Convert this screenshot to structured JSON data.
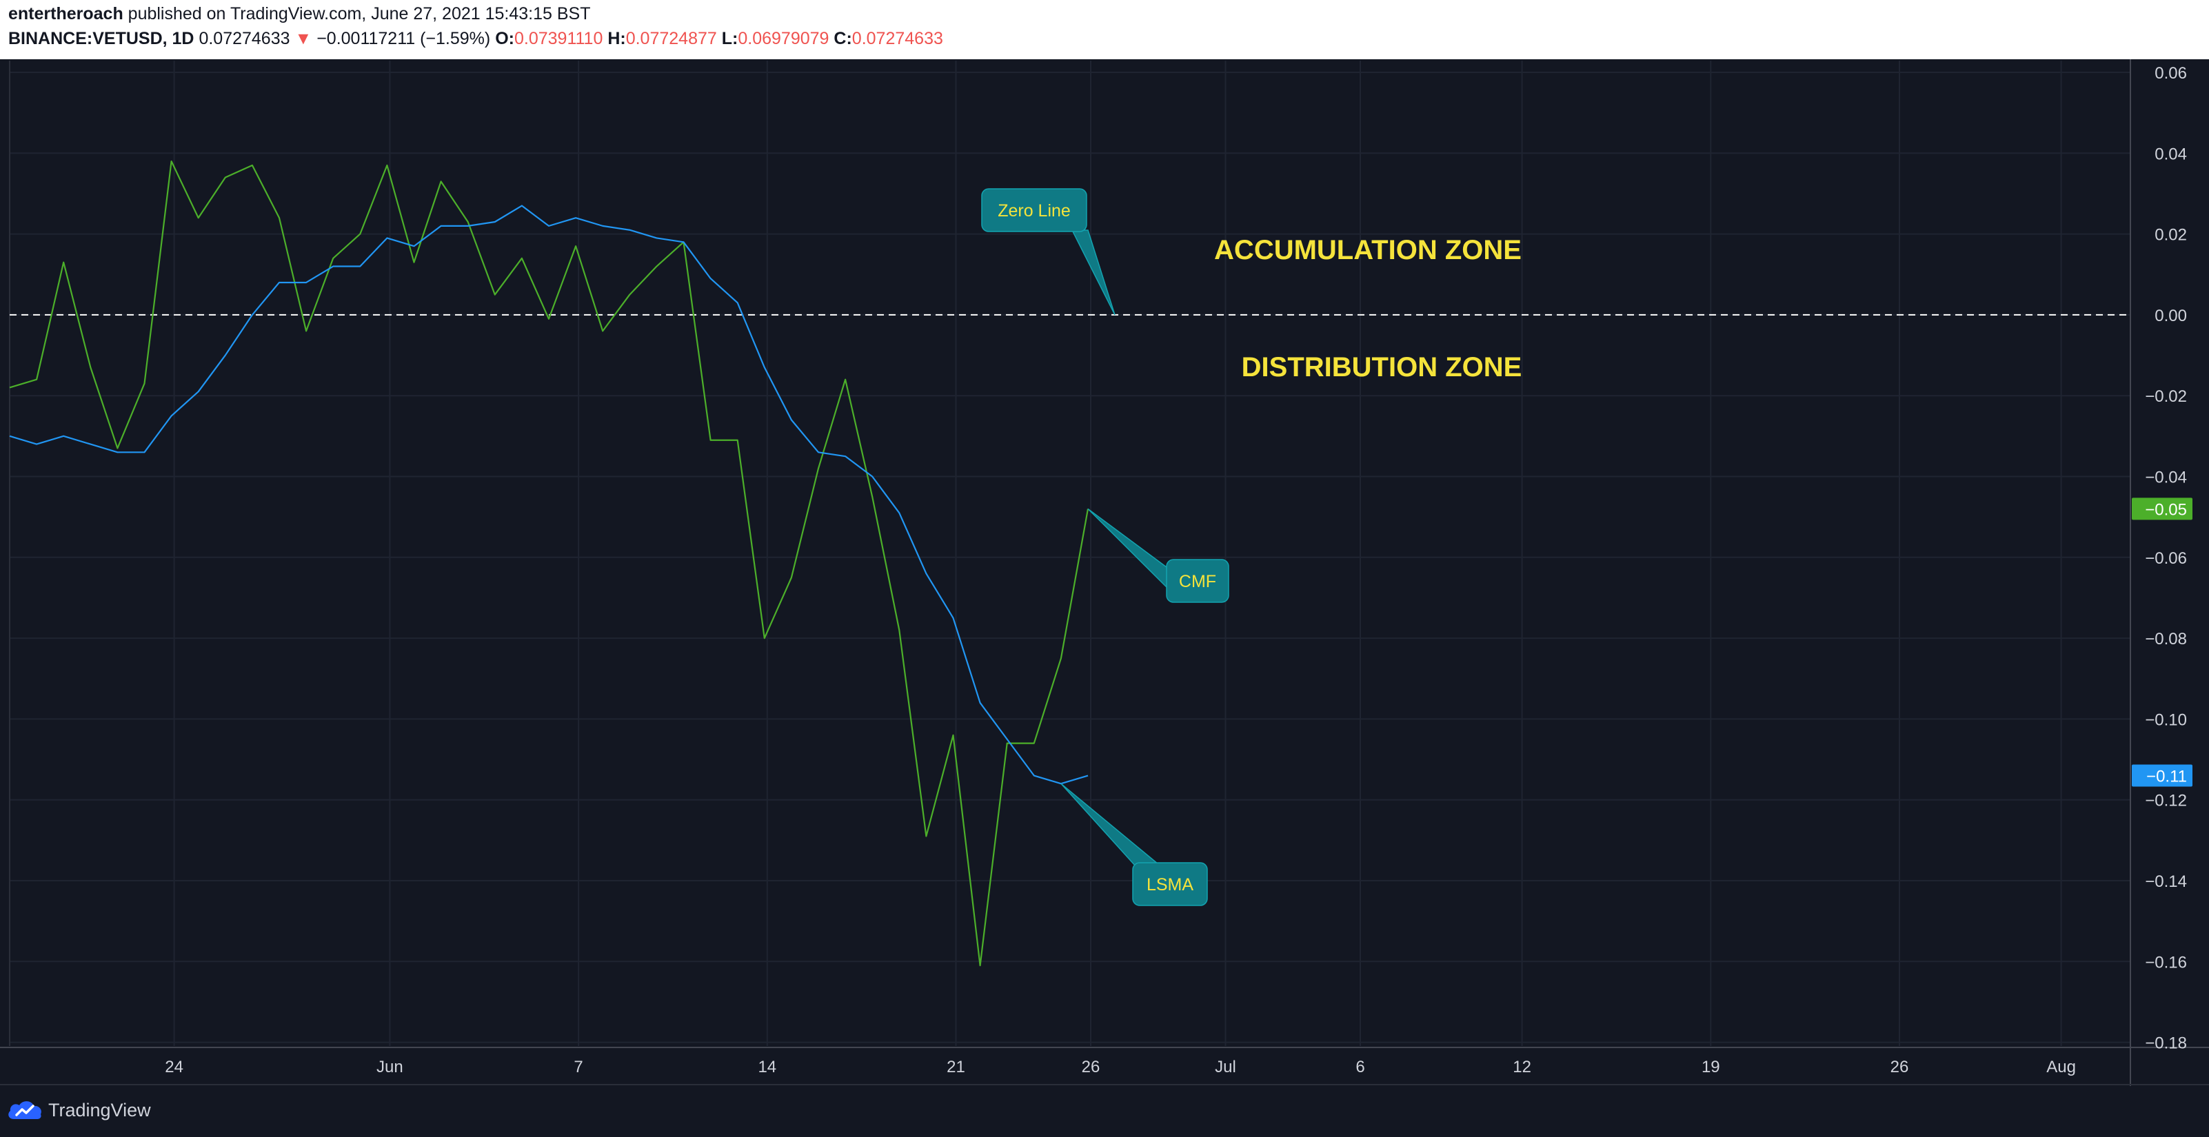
{
  "header": {
    "author": "entertheroach",
    "published_text": " published on TradingView.com, June 27, 2021 15:43:15 BST",
    "symbol": "BINANCE:VETUSD, 1D",
    "last_price": "0.07274633",
    "change_arrow": "▼",
    "change": "−0.00117211 (−1.59%)",
    "o_label": "O:",
    "o_value": "0.07391110",
    "h_label": "H:",
    "h_value": "0.07724877",
    "l_label": "L:",
    "l_value": "0.06979079",
    "c_label": "C:",
    "c_value": "0.07274633"
  },
  "footer": {
    "brand": "TradingView"
  },
  "colors": {
    "background": "#131722",
    "grid": "#1f2431",
    "cmf": "#4caf2a",
    "lsma": "#2196f3",
    "zone_text": "#f5e33b",
    "callout_fill": "#0f7a85",
    "callout_text": "#f5e33b"
  },
  "chart_data": {
    "type": "line",
    "title": "",
    "x_ticks": [
      "24",
      "Jun",
      "7",
      "14",
      "21",
      "26",
      "Jul",
      "6",
      "12",
      "19",
      "26",
      "Aug"
    ],
    "y_ticks": [
      "0.06",
      "0.04",
      "0.02",
      "0.00",
      "−0.02",
      "−0.04",
      "−0.06",
      "−0.08",
      "−0.10",
      "−0.12",
      "−0.14",
      "−0.16",
      "−0.18"
    ],
    "ylim": [
      -0.18,
      0.06
    ],
    "x_start_date": "2021-05-18",
    "series": [
      {
        "name": "CMF",
        "color": "#4caf2a",
        "last_value_label": "−0.05",
        "values": [
          -0.018,
          -0.016,
          0.013,
          -0.013,
          -0.033,
          -0.017,
          0.038,
          0.024,
          0.034,
          0.037,
          0.024,
          -0.004,
          0.014,
          0.02,
          0.037,
          0.013,
          0.033,
          0.023,
          0.005,
          0.014,
          -0.001,
          0.017,
          -0.004,
          0.005,
          0.012,
          0.018,
          -0.031,
          -0.031,
          -0.08,
          -0.065,
          -0.038,
          -0.016,
          -0.045,
          -0.078,
          -0.129,
          -0.104,
          -0.161,
          -0.106,
          -0.106,
          -0.085,
          -0.048
        ]
      },
      {
        "name": "LSMA",
        "color": "#2196f3",
        "last_value_label": "−0.11",
        "values": [
          -0.03,
          -0.032,
          -0.03,
          -0.032,
          -0.034,
          -0.034,
          -0.025,
          -0.019,
          -0.01,
          0.0,
          0.008,
          0.008,
          0.012,
          0.012,
          0.019,
          0.017,
          0.022,
          0.022,
          0.023,
          0.027,
          0.022,
          0.024,
          0.022,
          0.021,
          0.019,
          0.018,
          0.009,
          0.003,
          -0.013,
          -0.026,
          -0.034,
          -0.035,
          -0.04,
          -0.049,
          -0.064,
          -0.075,
          -0.096,
          -0.105,
          -0.114,
          -0.116,
          -0.114
        ]
      }
    ],
    "zero_line": {
      "value": 0,
      "style": "dashed"
    },
    "annotations": {
      "accumulation": "ACCUMULATION ZONE",
      "distribution": "DISTRIBUTION ZONE",
      "zero_callout": "Zero Line",
      "cmf_callout": "CMF",
      "lsma_callout": "LSMA"
    },
    "grid": true
  }
}
